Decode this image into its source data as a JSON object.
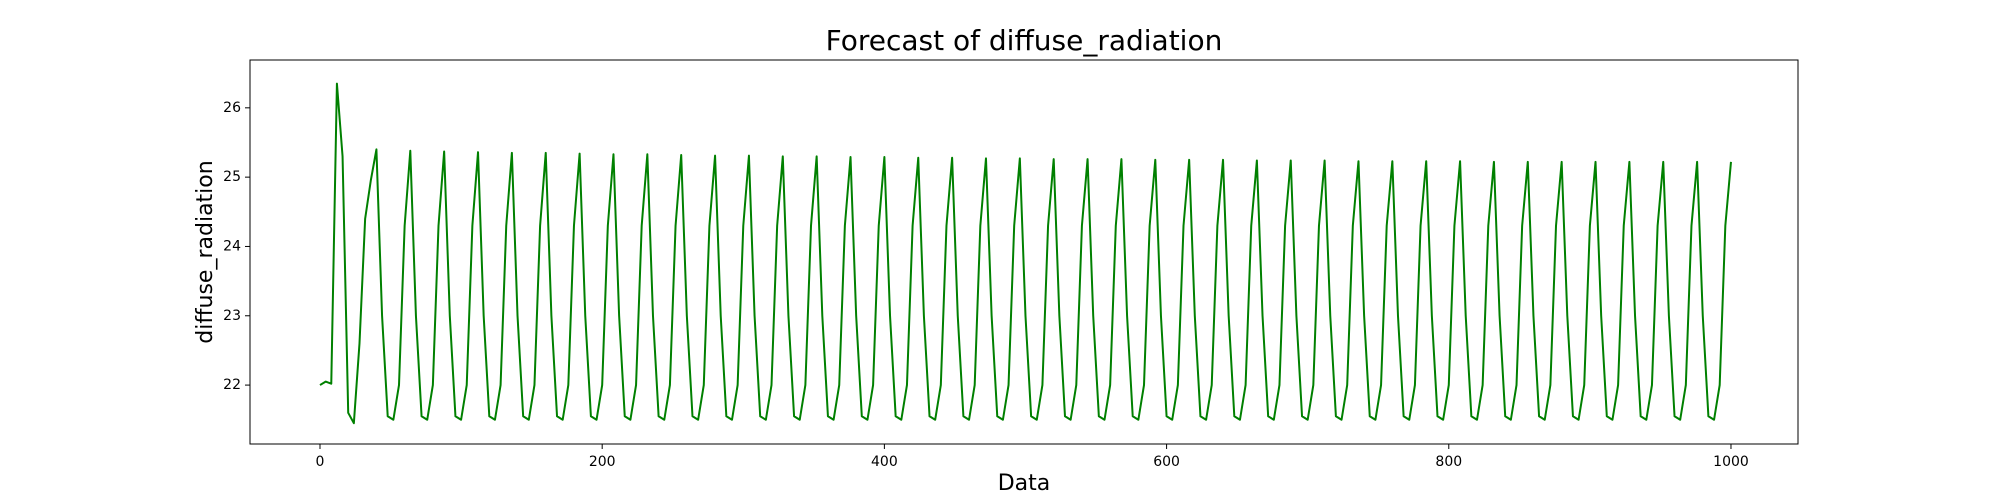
{
  "chart_data": {
    "type": "line",
    "title": "Forecast of diffuse_radiation",
    "x_label": "Data",
    "y_label": "diffuse_radiation",
    "color": "#008000",
    "xlim": [
      -49.6,
      1047.5
    ],
    "xticks": [
      0,
      200,
      400,
      600,
      800,
      1000
    ],
    "ylim": [
      21.15,
      26.69
    ],
    "yticks": [
      22,
      23,
      24,
      25,
      26
    ],
    "x": [
      0,
      4,
      8,
      12,
      16,
      20,
      24,
      28,
      32,
      36,
      40,
      44,
      48,
      52,
      56,
      60,
      64,
      68,
      72,
      76,
      80,
      84,
      88,
      92,
      96,
      100,
      104,
      108,
      112,
      116,
      120,
      124,
      128,
      132,
      136,
      140,
      144,
      148,
      152,
      156,
      160,
      164,
      168,
      172,
      176,
      180,
      184,
      188,
      192,
      196,
      200,
      204,
      208,
      212,
      216,
      220,
      224,
      228,
      232,
      236,
      240,
      244,
      248,
      252,
      256,
      260,
      264,
      268,
      272,
      276,
      280,
      284,
      288,
      292,
      296,
      300,
      304,
      308,
      312,
      316,
      320,
      324,
      328,
      332,
      336,
      340,
      344,
      348,
      352,
      356,
      360,
      364,
      368,
      372,
      376,
      380,
      384,
      388,
      392,
      396,
      400,
      404,
      408,
      412,
      416,
      420,
      424,
      428,
      432,
      436,
      440,
      444,
      448,
      452,
      456,
      460,
      464,
      468,
      472,
      476,
      480,
      484,
      488,
      492,
      496,
      500,
      504,
      508,
      512,
      516,
      520,
      524,
      528,
      532,
      536,
      540,
      544,
      548,
      552,
      556,
      560,
      564,
      568,
      572,
      576,
      580,
      584,
      588,
      592,
      596,
      600,
      604,
      608,
      612,
      616,
      620,
      624,
      628,
      632,
      636,
      640,
      644,
      648,
      652,
      656,
      660,
      664,
      668,
      672,
      676,
      680,
      684,
      688,
      692,
      696,
      700,
      704,
      708,
      712,
      716,
      720,
      724,
      728,
      732,
      736,
      740,
      744,
      748,
      752,
      756,
      760,
      764,
      768,
      772,
      776,
      780,
      784,
      788,
      792,
      796,
      800,
      804,
      808,
      812,
      816,
      820,
      824,
      828,
      832,
      836,
      840,
      844,
      848,
      852,
      856,
      860,
      864,
      868,
      872,
      876,
      880,
      884,
      888,
      892,
      896,
      900,
      904,
      908,
      912,
      916,
      920,
      924,
      928,
      932,
      936,
      940,
      944,
      948,
      952,
      956,
      960,
      964,
      968,
      972,
      976,
      980,
      984,
      988,
      992,
      996,
      1000
    ],
    "values": [
      22.0,
      22.05,
      22.02,
      26.35,
      25.3,
      21.6,
      21.45,
      22.6,
      24.4,
      24.95,
      25.4,
      23.0,
      21.55,
      21.5,
      22.0,
      24.3,
      25.38,
      23.0,
      21.55,
      21.5,
      22.0,
      24.3,
      25.37,
      23.0,
      21.55,
      21.5,
      22.0,
      24.3,
      25.36,
      23.0,
      21.55,
      21.5,
      22.0,
      24.3,
      25.35,
      23.0,
      21.55,
      21.5,
      22.0,
      24.3,
      25.35,
      23.0,
      21.55,
      21.5,
      22.0,
      24.3,
      25.34,
      23.0,
      21.55,
      21.5,
      22.0,
      24.3,
      25.33,
      23.0,
      21.55,
      21.5,
      22.0,
      24.3,
      25.33,
      23.0,
      21.55,
      21.5,
      22.0,
      24.3,
      25.32,
      23.0,
      21.55,
      21.5,
      22.0,
      24.3,
      25.31,
      23.0,
      21.55,
      21.5,
      22.0,
      24.3,
      25.31,
      23.0,
      21.55,
      21.5,
      22.0,
      24.3,
      25.3,
      23.0,
      21.55,
      21.5,
      22.0,
      24.3,
      25.3,
      23.0,
      21.55,
      21.5,
      22.0,
      24.3,
      25.29,
      23.0,
      21.55,
      21.5,
      22.0,
      24.3,
      25.29,
      23.0,
      21.55,
      21.5,
      22.0,
      24.3,
      25.28,
      23.0,
      21.55,
      21.5,
      22.0,
      24.3,
      25.28,
      23.0,
      21.55,
      21.5,
      22.0,
      24.3,
      25.27,
      23.0,
      21.55,
      21.5,
      22.0,
      24.3,
      25.27,
      23.0,
      21.55,
      21.5,
      22.0,
      24.3,
      25.26,
      23.0,
      21.55,
      21.5,
      22.0,
      24.3,
      25.26,
      23.0,
      21.55,
      21.5,
      22.0,
      24.3,
      25.26,
      23.0,
      21.55,
      21.5,
      22.0,
      24.3,
      25.25,
      23.0,
      21.55,
      21.5,
      22.0,
      24.3,
      25.25,
      23.0,
      21.55,
      21.5,
      22.0,
      24.3,
      25.25,
      23.0,
      21.55,
      21.5,
      22.0,
      24.3,
      25.24,
      23.0,
      21.55,
      21.5,
      22.0,
      24.3,
      25.24,
      23.0,
      21.55,
      21.5,
      22.0,
      24.3,
      25.24,
      23.0,
      21.55,
      21.5,
      22.0,
      24.3,
      25.23,
      23.0,
      21.55,
      21.5,
      22.0,
      24.3,
      25.23,
      23.0,
      21.55,
      21.5,
      22.0,
      24.3,
      25.23,
      23.0,
      21.55,
      21.5,
      22.0,
      24.3,
      25.23,
      23.0,
      21.55,
      21.5,
      22.0,
      24.3,
      25.22,
      23.0,
      21.55,
      21.5,
      22.0,
      24.3,
      25.22,
      23.0,
      21.55,
      21.5,
      22.0,
      24.3,
      25.22,
      23.0,
      21.55,
      21.5,
      22.0,
      24.3,
      25.22,
      23.0,
      21.55,
      21.5,
      22.0,
      24.3,
      25.22,
      23.0,
      21.55,
      21.5,
      22.0,
      24.3,
      25.22,
      23.0,
      21.55,
      21.5,
      22.0,
      24.3,
      25.22,
      23.0,
      21.55,
      21.5,
      22.0,
      24.3,
      25.22
    ]
  }
}
